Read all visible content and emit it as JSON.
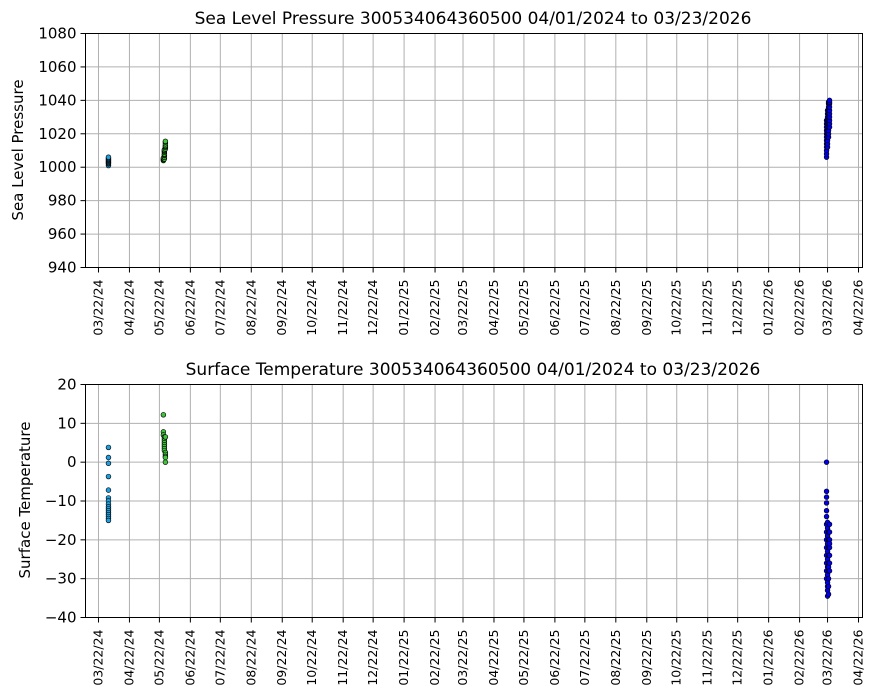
{
  "chart_data": [
    {
      "type": "scatter",
      "title": "Sea Level Pressure 300534064360500  04/01/2024 to 03/23/2026",
      "xlabel": "",
      "ylabel": "Sea Level Pressure",
      "ylim": [
        940,
        1080
      ],
      "yticks": [
        "940",
        "960",
        "980",
        "1000",
        "1020",
        "1040",
        "1060",
        "1080"
      ],
      "xlim": [
        "2024-03-09",
        "2026-04-26"
      ],
      "xticks": [
        "03/22/24",
        "04/22/24",
        "05/22/24",
        "06/22/24",
        "07/22/24",
        "08/22/24",
        "09/22/24",
        "10/22/24",
        "11/22/24",
        "12/22/24",
        "01/22/25",
        "02/22/25",
        "03/22/25",
        "04/22/25",
        "05/22/25",
        "06/22/25",
        "07/22/25",
        "08/22/25",
        "09/22/25",
        "10/22/25",
        "11/22/25",
        "12/22/25",
        "01/22/26",
        "02/22/26",
        "03/22/26",
        "04/22/26"
      ],
      "grid": true,
      "series": [
        {
          "color": "#1e9fe0",
          "x": [
            "2024-04-01",
            "2024-04-01",
            "2024-04-01",
            "2024-04-01",
            "2024-04-01",
            "2024-04-01",
            "2024-04-01",
            "2024-04-01",
            "2024-04-01",
            "2024-04-01"
          ],
          "y": [
            1001,
            1002,
            1002.5,
            1003,
            1003.5,
            1004,
            1004.5,
            1005,
            1005.5,
            1006
          ]
        },
        {
          "color": "#3fc53a",
          "x": [
            "2024-05-26",
            "2024-05-26",
            "2024-05-26",
            "2024-05-26",
            "2024-05-27",
            "2024-05-27",
            "2024-05-27",
            "2024-05-27",
            "2024-05-27",
            "2024-05-27",
            "2024-05-27",
            "2024-05-27",
            "2024-05-27",
            "2024-05-28",
            "2024-05-28",
            "2024-05-28",
            "2024-05-28",
            "2024-05-28",
            "2024-05-28",
            "2024-05-28"
          ],
          "y": [
            1004,
            1004.5,
            1005,
            1005.5,
            1005,
            1006,
            1007,
            1007.5,
            1008,
            1009,
            1009.5,
            1010,
            1010.5,
            1011,
            1012,
            1012.5,
            1013,
            1014,
            1015,
            1015.5
          ]
        },
        {
          "color": "#0000ee",
          "x": [
            "2026-03-21",
            "2026-03-21",
            "2026-03-21",
            "2026-03-21",
            "2026-03-21",
            "2026-03-21",
            "2026-03-21",
            "2026-03-21",
            "2026-03-21",
            "2026-03-21",
            "2026-03-21",
            "2026-03-21",
            "2026-03-22",
            "2026-03-22",
            "2026-03-22",
            "2026-03-22",
            "2026-03-22",
            "2026-03-22",
            "2026-03-22",
            "2026-03-22",
            "2026-03-22",
            "2026-03-22",
            "2026-03-22",
            "2026-03-22",
            "2026-03-23",
            "2026-03-23",
            "2026-03-23",
            "2026-03-23",
            "2026-03-23",
            "2026-03-23",
            "2026-03-23",
            "2026-03-23",
            "2026-03-23",
            "2026-03-23",
            "2026-03-23",
            "2026-03-23",
            "2026-03-24",
            "2026-03-24",
            "2026-03-24",
            "2026-03-24",
            "2026-03-24",
            "2026-03-24",
            "2026-03-24",
            "2026-03-24",
            "2026-03-24",
            "2026-03-24"
          ],
          "y": [
            1006,
            1008,
            1010,
            1012,
            1014,
            1016,
            1018,
            1020,
            1022,
            1024,
            1026,
            1028,
            1012,
            1014,
            1016,
            1018,
            1020,
            1022,
            1024,
            1026,
            1028,
            1030,
            1032,
            1034,
            1018,
            1020,
            1022,
            1024,
            1026,
            1028,
            1030,
            1032,
            1034,
            1036,
            1038,
            1039,
            1024,
            1026,
            1028,
            1030,
            1032,
            1034,
            1036,
            1038,
            1039,
            1040
          ]
        }
      ]
    },
    {
      "type": "scatter",
      "title": "Surface Temperature 300534064360500  04/01/2024 to 03/23/2026",
      "xlabel": "",
      "ylabel": "Surface Temperature",
      "ylim": [
        -40,
        20
      ],
      "yticks": [
        "−40",
        "−30",
        "−20",
        "−10",
        "0",
        "10",
        "20"
      ],
      "xlim": [
        "2024-03-09",
        "2026-04-26"
      ],
      "xticks": [
        "03/22/24",
        "04/22/24",
        "05/22/24",
        "06/22/24",
        "07/22/24",
        "08/22/24",
        "09/22/24",
        "10/22/24",
        "11/22/24",
        "12/22/24",
        "01/22/25",
        "02/22/25",
        "03/22/25",
        "04/22/25",
        "05/22/25",
        "06/22/25",
        "07/22/25",
        "08/22/25",
        "09/22/25",
        "10/22/25",
        "11/22/25",
        "12/22/25",
        "01/22/26",
        "02/22/26",
        "03/22/26",
        "04/22/26"
      ],
      "grid": true,
      "series": [
        {
          "color": "#1e9fe0",
          "x": [
            "2024-04-01",
            "2024-04-01",
            "2024-04-01",
            "2024-04-01",
            "2024-04-01",
            "2024-04-01",
            "2024-04-01",
            "2024-04-01",
            "2024-04-01",
            "2024-04-01",
            "2024-04-01",
            "2024-04-01",
            "2024-04-01",
            "2024-04-01",
            "2024-04-01",
            "2024-04-01"
          ],
          "y": [
            3.8,
            1.2,
            -0.3,
            -3.7,
            -7.2,
            -9.2,
            -10,
            -10.8,
            -11.5,
            -12,
            -12.5,
            -13,
            -13.5,
            -14,
            -14.5,
            -15
          ]
        },
        {
          "color": "#3fc53a",
          "x": [
            "2024-05-26",
            "2024-05-26",
            "2024-05-26",
            "2024-05-27",
            "2024-05-27",
            "2024-05-27",
            "2024-05-27",
            "2024-05-27",
            "2024-05-27",
            "2024-05-27",
            "2024-05-27",
            "2024-05-28",
            "2024-05-28",
            "2024-05-28",
            "2024-05-28",
            "2024-05-28",
            "2024-05-28"
          ],
          "y": [
            12.2,
            7.8,
            7,
            6.5,
            6,
            5.5,
            5,
            4.5,
            4,
            3.5,
            3,
            2.5,
            2,
            1.5,
            1.2,
            6.5,
            0
          ]
        },
        {
          "color": "#0000ee",
          "x": [
            "2026-03-21",
            "2026-03-21",
            "2026-03-21",
            "2026-03-21",
            "2026-03-21",
            "2026-03-21",
            "2026-03-21",
            "2026-03-21",
            "2026-03-21",
            "2026-03-21",
            "2026-03-21",
            "2026-03-21",
            "2026-03-21",
            "2026-03-21",
            "2026-03-22",
            "2026-03-22",
            "2026-03-22",
            "2026-03-22",
            "2026-03-22",
            "2026-03-22",
            "2026-03-22",
            "2026-03-22",
            "2026-03-22",
            "2026-03-22",
            "2026-03-22",
            "2026-03-22",
            "2026-03-23",
            "2026-03-23",
            "2026-03-23",
            "2026-03-23",
            "2026-03-23",
            "2026-03-23",
            "2026-03-23",
            "2026-03-23",
            "2026-03-23",
            "2026-03-23",
            "2026-03-24",
            "2026-03-24",
            "2026-03-24",
            "2026-03-24",
            "2026-03-24",
            "2026-03-24",
            "2026-03-24",
            "2026-03-24"
          ],
          "y": [
            0,
            -7.5,
            -9,
            -10.5,
            -12.5,
            -14,
            -16,
            -18,
            -20,
            -22,
            -24,
            -26,
            -28,
            -30,
            -32,
            -34.5,
            -33,
            -31,
            -29,
            -27,
            -25,
            -23,
            -21,
            -19,
            -17,
            -15.5,
            -18,
            -20,
            -22,
            -24,
            -26,
            -28,
            -30,
            -32,
            -34,
            -27,
            -16,
            -18,
            -20,
            -22,
            -24,
            -26,
            -28,
            -21
          ]
        }
      ]
    }
  ]
}
